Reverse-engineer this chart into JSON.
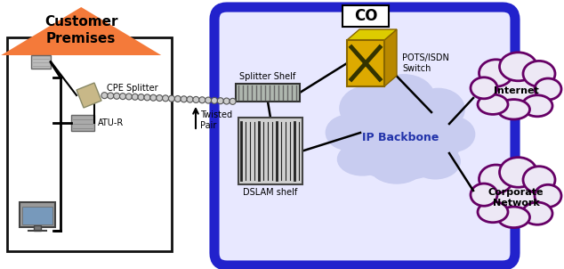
{
  "bg_color": "#f0f0f0",
  "house_outline_color": "#111111",
  "triangle_color": "#f47a3a",
  "triangle_text": "Customer\nPremises",
  "co_box_color": "#2222cc",
  "co_label": "CO",
  "ip_backbone_text": "IP Backbone",
  "cloud_fill": "#dde0f8",
  "cloud_outline": "#660066",
  "internet_text": "Internet",
  "corporate_text": "Corporate\nNetwork",
  "cpe_splitter_text": "CPE Splitter",
  "atu_r_text": "ATU-R",
  "twisted_pair_text": "Twisted\nPair",
  "splitter_shelf_text": "Splitter Shelf",
  "dslam_shelf_text": "DSLAM shelf",
  "pots_isdn_text": "POTS/ISDN\nSwitch",
  "white_bg": "#ffffff"
}
